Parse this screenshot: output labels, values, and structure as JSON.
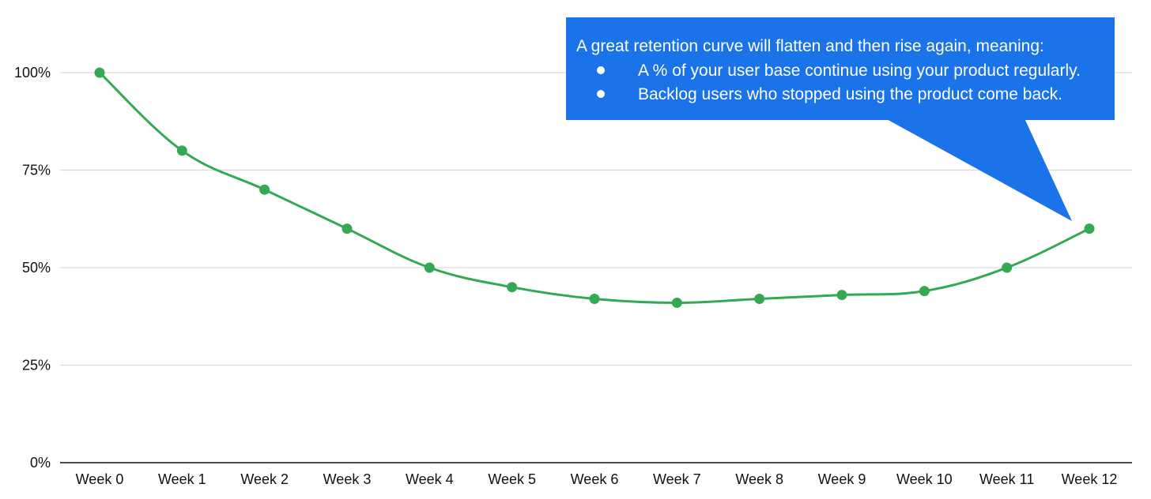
{
  "chart_data": {
    "type": "line",
    "categories": [
      "Week 0",
      "Week 1",
      "Week 2",
      "Week 3",
      "Week 4",
      "Week 5",
      "Week 6",
      "Week 7",
      "Week 8",
      "Week 9",
      "Week 10",
      "Week 11",
      "Week 12"
    ],
    "series": [
      {
        "values": [
          100,
          80,
          70,
          60,
          50,
          45,
          42,
          41,
          42,
          43,
          44,
          50,
          60
        ]
      }
    ],
    "y_ticks": [
      "0%",
      "25%",
      "50%",
      "75%",
      "100%"
    ],
    "ylim": [
      0,
      100
    ],
    "grid": true,
    "colors": {
      "line": "#34a853",
      "grid": "#d9d9d9",
      "axis": "#111111",
      "callout": "#1a73e8"
    },
    "annotation": {
      "heading": "A great retention curve will flatten and then rise again, meaning:",
      "bullets": [
        "A % of your user base continue using your product regularly.",
        "Backlog users who stopped using the product come back."
      ],
      "points_to": "Week 12"
    }
  }
}
